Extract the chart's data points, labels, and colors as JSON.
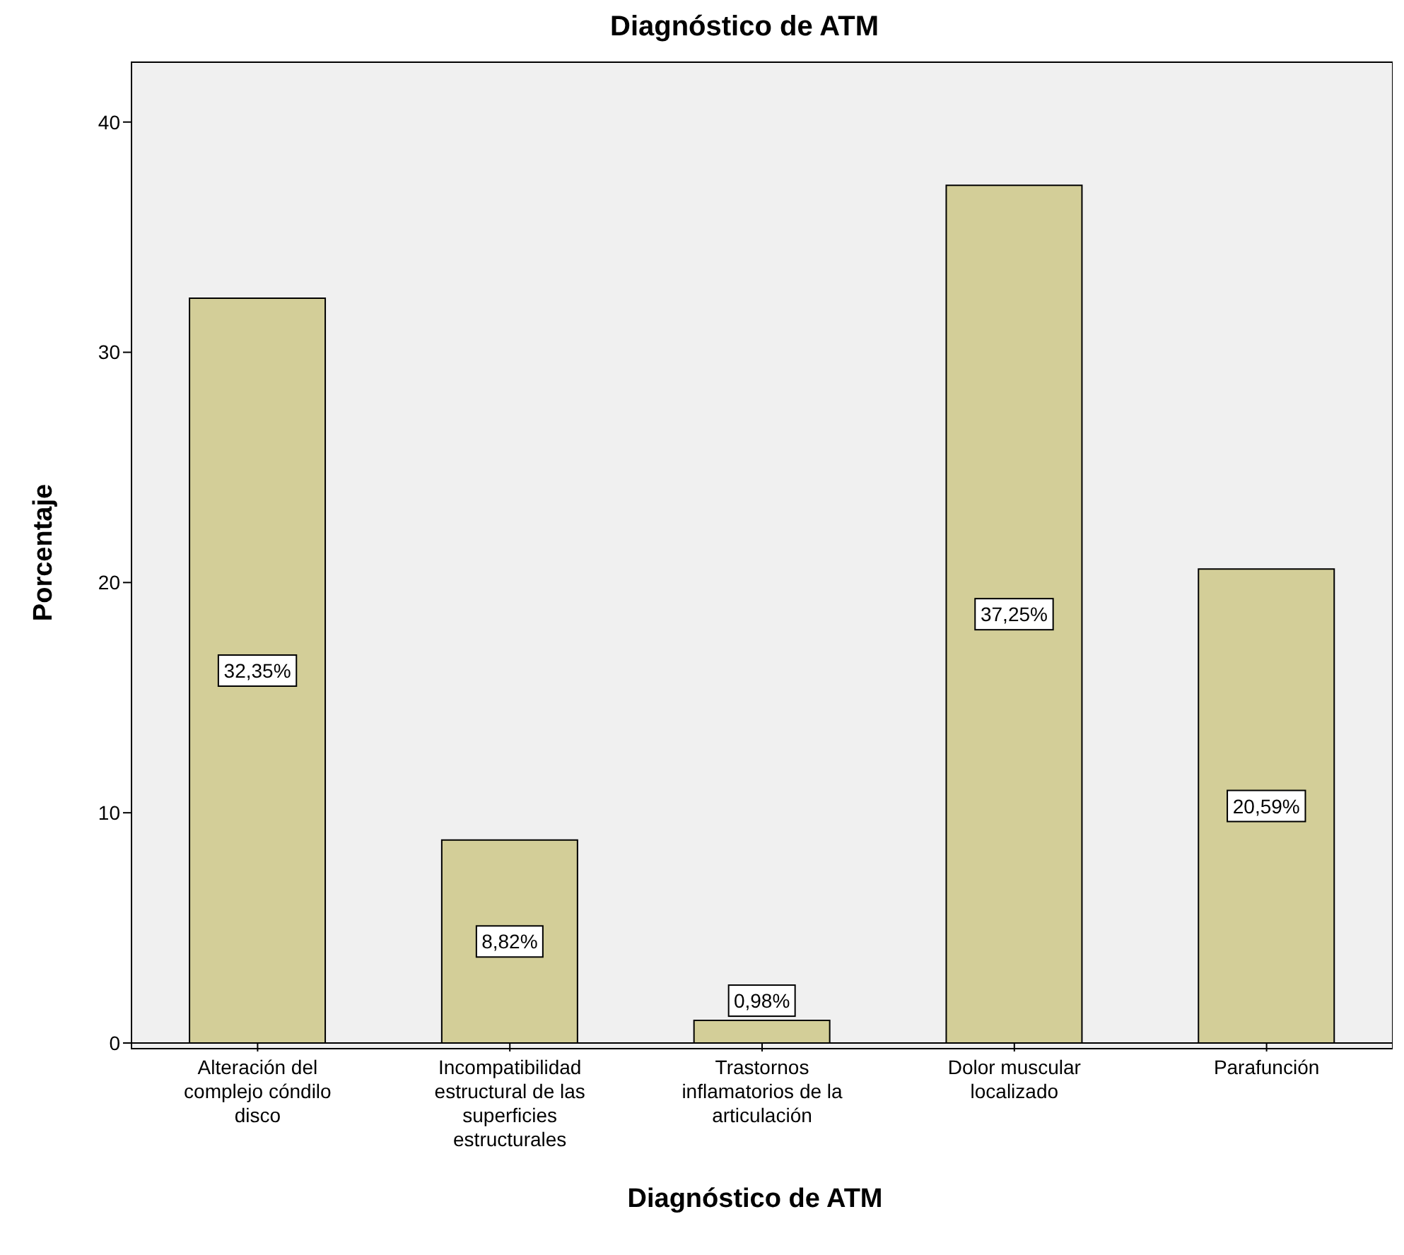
{
  "chart_data": {
    "type": "bar",
    "title": "Diagnóstico de ATM",
    "xlabel": "Diagnóstico de ATM",
    "ylabel": "Porcentaje",
    "categories": [
      "Alteración del complejo cóndilo disco",
      "Incompatibilidad estructural de las superficies estructurales",
      "Trastornos inflamatorios de la articulación",
      "Dolor muscular localizado",
      "Parafunción"
    ],
    "values": [
      32.35,
      8.82,
      0.98,
      37.25,
      20.59
    ],
    "value_labels": [
      "32,35%",
      "8,82%",
      "0,98%",
      "37,25%",
      "20,59%"
    ],
    "color": "#d3ce98",
    "ylim": [
      0,
      42.6
    ],
    "yticks": [
      0,
      10,
      20,
      30,
      40
    ],
    "legend": false
  }
}
